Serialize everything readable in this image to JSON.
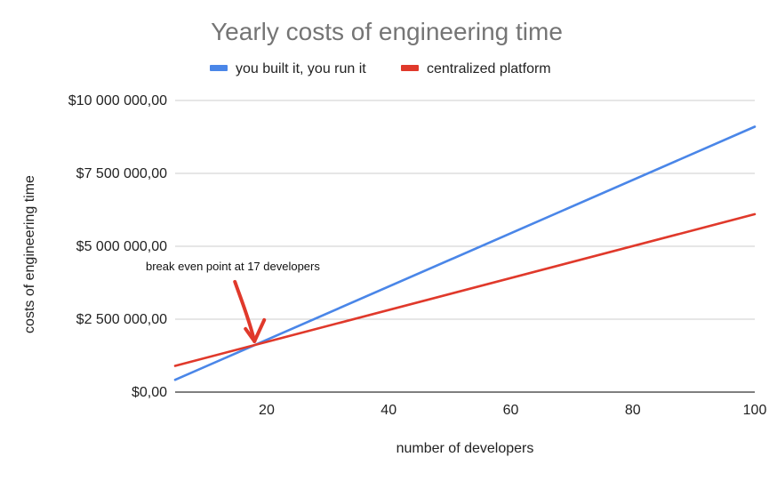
{
  "chart_data": {
    "type": "line",
    "title": "Yearly costs of engineering time",
    "xlabel": "number of developers",
    "ylabel": "costs of engineering time",
    "xlim": [
      5,
      100
    ],
    "ylim": [
      0,
      10000000
    ],
    "x_ticks": [
      20,
      40,
      60,
      80,
      100
    ],
    "y_ticks": [
      {
        "value": 0,
        "label": "$0,00"
      },
      {
        "value": 2500000,
        "label": "$2 500 000,00"
      },
      {
        "value": 5000000,
        "label": "$5 000 000,00"
      },
      {
        "value": 7500000,
        "label": "$7 500 000,00"
      },
      {
        "value": 10000000,
        "label": "$10 000 000,00"
      }
    ],
    "grid": true,
    "legend_position": "top",
    "series": [
      {
        "name": "you built it, you run it",
        "color": "#4a86e8",
        "x": [
          5,
          100
        ],
        "y": [
          420000,
          9100000
        ]
      },
      {
        "name": "centralized platform",
        "color": "#e0392b",
        "x": [
          5,
          100
        ],
        "y": [
          900000,
          6100000
        ]
      }
    ],
    "annotations": [
      {
        "text": "break even point at 17 developers",
        "x": 18,
        "y": 1650000,
        "color": "#e0392b"
      }
    ]
  }
}
